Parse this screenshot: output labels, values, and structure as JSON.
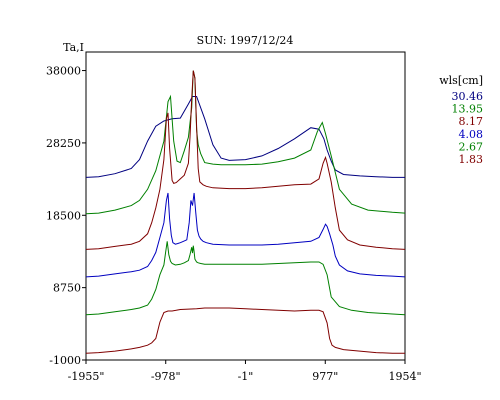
{
  "chart_data": {
    "type": "line",
    "title": "SUN: 1997/12/24",
    "ylabel": "Ta,I",
    "xlabel": "",
    "xlim": [
      -1955,
      1954
    ],
    "ylim": [
      -1000,
      40500
    ],
    "x_ticks": [
      {
        "value": -1955,
        "label": "-1955\""
      },
      {
        "value": -978,
        "label": "-978\""
      },
      {
        "value": -1,
        "label": "-1\""
      },
      {
        "value": 977,
        "label": "977\""
      },
      {
        "value": 1954,
        "label": "1954\""
      }
    ],
    "y_ticks": [
      {
        "value": 38000,
        "label": "38000"
      },
      {
        "value": 28250,
        "label": "28250"
      },
      {
        "value": 18500,
        "label": "18500"
      },
      {
        "value": 8750,
        "label": "8750"
      },
      {
        "value": -1000,
        "label": "-1000"
      }
    ],
    "legend_title": "wls[cm]",
    "legend_position": "right",
    "grid": false,
    "series": [
      {
        "name": "30.46",
        "color": "#000080",
        "x": [
          -1955,
          -1800,
          -1600,
          -1400,
          -1300,
          -1200,
          -1100,
          -1000,
          -900,
          -800,
          -700,
          -650,
          -600,
          -500,
          -400,
          -300,
          -200,
          0,
          200,
          400,
          600,
          800,
          900,
          960,
          1000,
          1050,
          1100,
          1200,
          1400,
          1600,
          1800,
          1954
        ],
        "y": [
          23600,
          23700,
          24100,
          24800,
          26000,
          28500,
          30500,
          31200,
          31500,
          31600,
          33500,
          34500,
          34500,
          31500,
          28000,
          26200,
          25900,
          26000,
          26500,
          27500,
          28800,
          30300,
          30100,
          28800,
          27300,
          25800,
          24600,
          24000,
          23800,
          23700,
          23600,
          23600
        ]
      },
      {
        "name": "13.95",
        "color": "#008000",
        "x": [
          -1955,
          -1800,
          -1600,
          -1400,
          -1300,
          -1200,
          -1100,
          -1000,
          -950,
          -920,
          -880,
          -840,
          -800,
          -750,
          -700,
          -660,
          -640,
          -620,
          -600,
          -580,
          -550,
          -500,
          -400,
          -300,
          -200,
          0,
          200,
          400,
          600,
          800,
          880,
          940,
          980,
          1050,
          1150,
          1300,
          1500,
          1800,
          1954
        ],
        "y": [
          18700,
          18800,
          19200,
          19800,
          20500,
          22000,
          24500,
          28500,
          33800,
          34500,
          28500,
          25800,
          25600,
          27200,
          29000,
          33000,
          38000,
          37000,
          30000,
          28000,
          26800,
          25600,
          25400,
          25300,
          25300,
          25300,
          25400,
          25700,
          26200,
          27300,
          29800,
          31000,
          29500,
          26500,
          22000,
          20000,
          19200,
          18900,
          18800
        ]
      },
      {
        "name": "8.17",
        "color": "#800000",
        "x": [
          -1955,
          -1800,
          -1600,
          -1400,
          -1300,
          -1200,
          -1150,
          -1100,
          -1050,
          -1000,
          -970,
          -950,
          -930,
          -900,
          -880,
          -850,
          -800,
          -750,
          -700,
          -680,
          -660,
          -640,
          -620,
          -600,
          -580,
          -560,
          -520,
          -480,
          -400,
          -200,
          0,
          200,
          400,
          600,
          800,
          900,
          950,
          980,
          1000,
          1050,
          1100,
          1150,
          1250,
          1400,
          1600,
          1800,
          1954
        ],
        "y": [
          13900,
          14000,
          14300,
          14600,
          15000,
          16000,
          17500,
          19500,
          22000,
          26000,
          31500,
          32300,
          27500,
          23200,
          22800,
          22900,
          23400,
          23900,
          25500,
          29000,
          34200,
          38000,
          37000,
          30500,
          24800,
          23000,
          22600,
          22400,
          22200,
          22100,
          22100,
          22200,
          22400,
          22600,
          22700,
          23400,
          25500,
          26300,
          25500,
          23000,
          19500,
          16500,
          15200,
          14500,
          14200,
          14000,
          13900
        ]
      },
      {
        "name": "4.08",
        "color": "#0000c0",
        "x": [
          -1955,
          -1800,
          -1600,
          -1400,
          -1300,
          -1200,
          -1150,
          -1100,
          -1050,
          -1000,
          -970,
          -950,
          -930,
          -910,
          -890,
          -860,
          -830,
          -800,
          -760,
          -720,
          -690,
          -670,
          -650,
          -630,
          -610,
          -590,
          -570,
          -550,
          -520,
          -480,
          -400,
          -200,
          0,
          200,
          400,
          600,
          800,
          900,
          950,
          980,
          1000,
          1030,
          1070,
          1100,
          1150,
          1250,
          1400,
          1600,
          1800,
          1954
        ],
        "y": [
          10200,
          10300,
          10600,
          10900,
          11100,
          11600,
          12400,
          13500,
          15500,
          17500,
          20500,
          21500,
          18000,
          15800,
          14800,
          14600,
          14700,
          14800,
          15000,
          15200,
          17500,
          20500,
          19800,
          21500,
          18800,
          16500,
          15700,
          15300,
          15000,
          14800,
          14600,
          14500,
          14500,
          14500,
          14600,
          14800,
          15000,
          15500,
          16600,
          17300,
          17000,
          16000,
          14500,
          13000,
          11800,
          11000,
          10600,
          10400,
          10300,
          10200
        ]
      },
      {
        "name": "2.67",
        "color": "#008000",
        "x": [
          -1955,
          -1800,
          -1600,
          -1400,
          -1300,
          -1200,
          -1150,
          -1100,
          -1050,
          -1000,
          -980,
          -960,
          -940,
          -920,
          -900,
          -860,
          -800,
          -750,
          -700,
          -680,
          -660,
          -650,
          -640,
          -630,
          -620,
          -600,
          -580,
          -550,
          -500,
          -400,
          -200,
          0,
          200,
          400,
          600,
          800,
          900,
          950,
          1000,
          1050,
          1150,
          1300,
          1500,
          1800,
          1954
        ],
        "y": [
          5100,
          5200,
          5500,
          5800,
          6000,
          6400,
          7200,
          8500,
          10500,
          11800,
          13500,
          15000,
          13200,
          12300,
          12000,
          11800,
          11900,
          12100,
          12400,
          13200,
          14200,
          13400,
          14400,
          13600,
          12600,
          12200,
          12100,
          12000,
          11900,
          11900,
          11900,
          11900,
          11900,
          12000,
          12100,
          12200,
          12200,
          11900,
          10500,
          7500,
          6200,
          5700,
          5400,
          5200,
          5100
        ]
      },
      {
        "name": "1.83",
        "color": "#800000",
        "x": [
          -1955,
          -1800,
          -1600,
          -1400,
          -1300,
          -1200,
          -1150,
          -1100,
          -1050,
          -1000,
          -950,
          -900,
          -850,
          -800,
          -600,
          -500,
          -400,
          -200,
          0,
          200,
          400,
          600,
          800,
          900,
          950,
          1000,
          1030,
          1060,
          1100,
          1200,
          1400,
          1600,
          1800,
          1954
        ],
        "y": [
          -100,
          0,
          200,
          500,
          700,
          1000,
          1300,
          1900,
          4100,
          5400,
          5600,
          5600,
          5700,
          5800,
          5900,
          6000,
          6000,
          6000,
          5900,
          5800,
          5700,
          5600,
          5700,
          5700,
          5500,
          4000,
          1900,
          1000,
          700,
          400,
          200,
          0,
          -100,
          -100
        ]
      }
    ]
  }
}
